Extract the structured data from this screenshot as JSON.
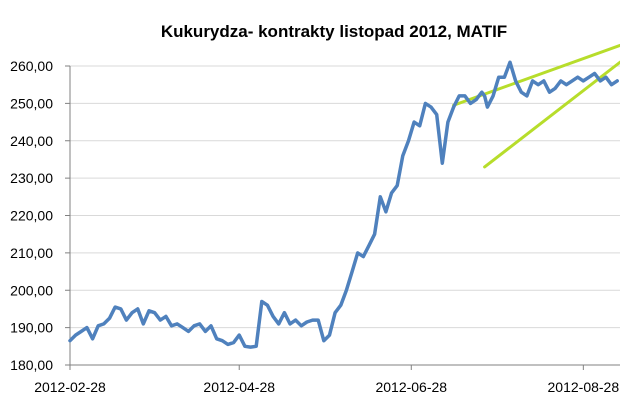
{
  "chart_data": {
    "type": "line",
    "title": "Kukurydza- kontrakty listopad 2012, MATIF",
    "xlabel": "",
    "ylabel": "",
    "ylim": [
      180,
      260
    ],
    "y_ticks": [
      "180,00",
      "190,00",
      "200,00",
      "210,00",
      "220,00",
      "230,00",
      "240,00",
      "250,00",
      "260,00"
    ],
    "y_tick_values": [
      180,
      190,
      200,
      210,
      220,
      230,
      240,
      250,
      260
    ],
    "x_ticks": [
      "2012-02-28",
      "2012-04-28",
      "2012-06-28",
      "2012-08-28"
    ],
    "x_tick_dates": [
      "2012-02-28",
      "2012-04-28",
      "2012-06-28",
      "2012-08-28"
    ],
    "xlim": [
      "2012-02-28",
      "2012-09-10"
    ],
    "grid": true,
    "legend": "none",
    "colors": {
      "line": "#4F81BD",
      "trend": "#B7DD2B",
      "grid": "#D9D9D9",
      "axis": "#808080"
    },
    "series": [
      {
        "x": [
          "2012-02-28",
          "2012-03-01",
          "2012-03-03",
          "2012-03-05",
          "2012-03-07",
          "2012-03-09",
          "2012-03-11",
          "2012-03-13",
          "2012-03-15",
          "2012-03-17",
          "2012-03-19",
          "2012-03-21",
          "2012-03-23",
          "2012-03-25",
          "2012-03-27",
          "2012-03-29",
          "2012-03-31",
          "2012-04-02",
          "2012-04-04",
          "2012-04-06",
          "2012-04-08",
          "2012-04-10",
          "2012-04-12",
          "2012-04-14",
          "2012-04-16",
          "2012-04-18",
          "2012-04-20",
          "2012-04-22",
          "2012-04-24",
          "2012-04-26",
          "2012-04-28",
          "2012-04-30",
          "2012-05-02",
          "2012-05-04",
          "2012-05-06",
          "2012-05-08",
          "2012-05-10",
          "2012-05-12",
          "2012-05-14",
          "2012-05-16",
          "2012-05-18",
          "2012-05-20",
          "2012-05-22",
          "2012-05-24",
          "2012-05-26",
          "2012-05-28",
          "2012-05-30",
          "2012-06-01",
          "2012-06-03",
          "2012-06-05",
          "2012-06-07",
          "2012-06-09",
          "2012-06-11",
          "2012-06-13",
          "2012-06-15",
          "2012-06-17",
          "2012-06-19",
          "2012-06-21",
          "2012-06-23",
          "2012-06-25",
          "2012-06-27",
          "2012-06-29",
          "2012-07-01",
          "2012-07-03",
          "2012-07-05",
          "2012-07-07",
          "2012-07-09",
          "2012-07-11",
          "2012-07-13",
          "2012-07-15",
          "2012-07-17",
          "2012-07-19",
          "2012-07-21",
          "2012-07-23",
          "2012-07-24",
          "2012-07-25",
          "2012-07-27",
          "2012-07-29",
          "2012-07-31",
          "2012-08-02",
          "2012-08-04",
          "2012-08-06",
          "2012-08-08",
          "2012-08-10",
          "2012-08-12",
          "2012-08-14",
          "2012-08-16",
          "2012-08-18",
          "2012-08-20",
          "2012-08-22",
          "2012-08-24",
          "2012-08-26",
          "2012-08-28",
          "2012-08-30",
          "2012-09-01",
          "2012-09-03",
          "2012-09-05",
          "2012-09-07",
          "2012-09-09"
        ],
        "values": [
          186.5,
          188.0,
          189.0,
          190.0,
          187.0,
          190.5,
          191.0,
          192.5,
          195.5,
          195.0,
          192.0,
          194.0,
          195.0,
          191.0,
          194.5,
          194.0,
          192.0,
          193.0,
          190.5,
          191.0,
          190.0,
          189.0,
          190.5,
          191.0,
          189.0,
          190.5,
          187.0,
          186.5,
          185.5,
          186.0,
          188.0,
          185.0,
          184.8,
          185.0,
          197.0,
          196.0,
          193.0,
          191.0,
          194.0,
          191.0,
          192.0,
          190.5,
          191.5,
          192.0,
          192.0,
          186.5,
          188.0,
          194.0,
          196.0,
          200.0,
          205.0,
          210.0,
          209.0,
          212.0,
          215.0,
          225.0,
          221.0,
          226.0,
          228.0,
          236.0,
          240.0,
          245.0,
          244.0,
          250.0,
          249.0,
          247.0,
          234.0,
          245.0,
          249.0,
          252.0,
          252.0,
          250.0,
          251.0,
          253.0,
          252.0,
          249.0,
          252.0,
          257.0,
          257.0,
          261.0,
          256.0,
          253.0,
          252.0,
          256.0,
          255.0,
          256.0,
          253.0,
          254.0,
          256.0,
          255.0,
          256.0,
          257.0,
          256.0,
          257.0,
          258.0,
          256.0,
          257.0,
          255.0,
          256.0
        ]
      }
    ],
    "trendlines": [
      {
        "x": [
          "2012-07-13",
          "2012-09-10"
        ],
        "values": [
          249.5,
          265.5
        ]
      },
      {
        "x": [
          "2012-07-24",
          "2012-09-10"
        ],
        "values": [
          233.0,
          261.0
        ]
      }
    ]
  }
}
